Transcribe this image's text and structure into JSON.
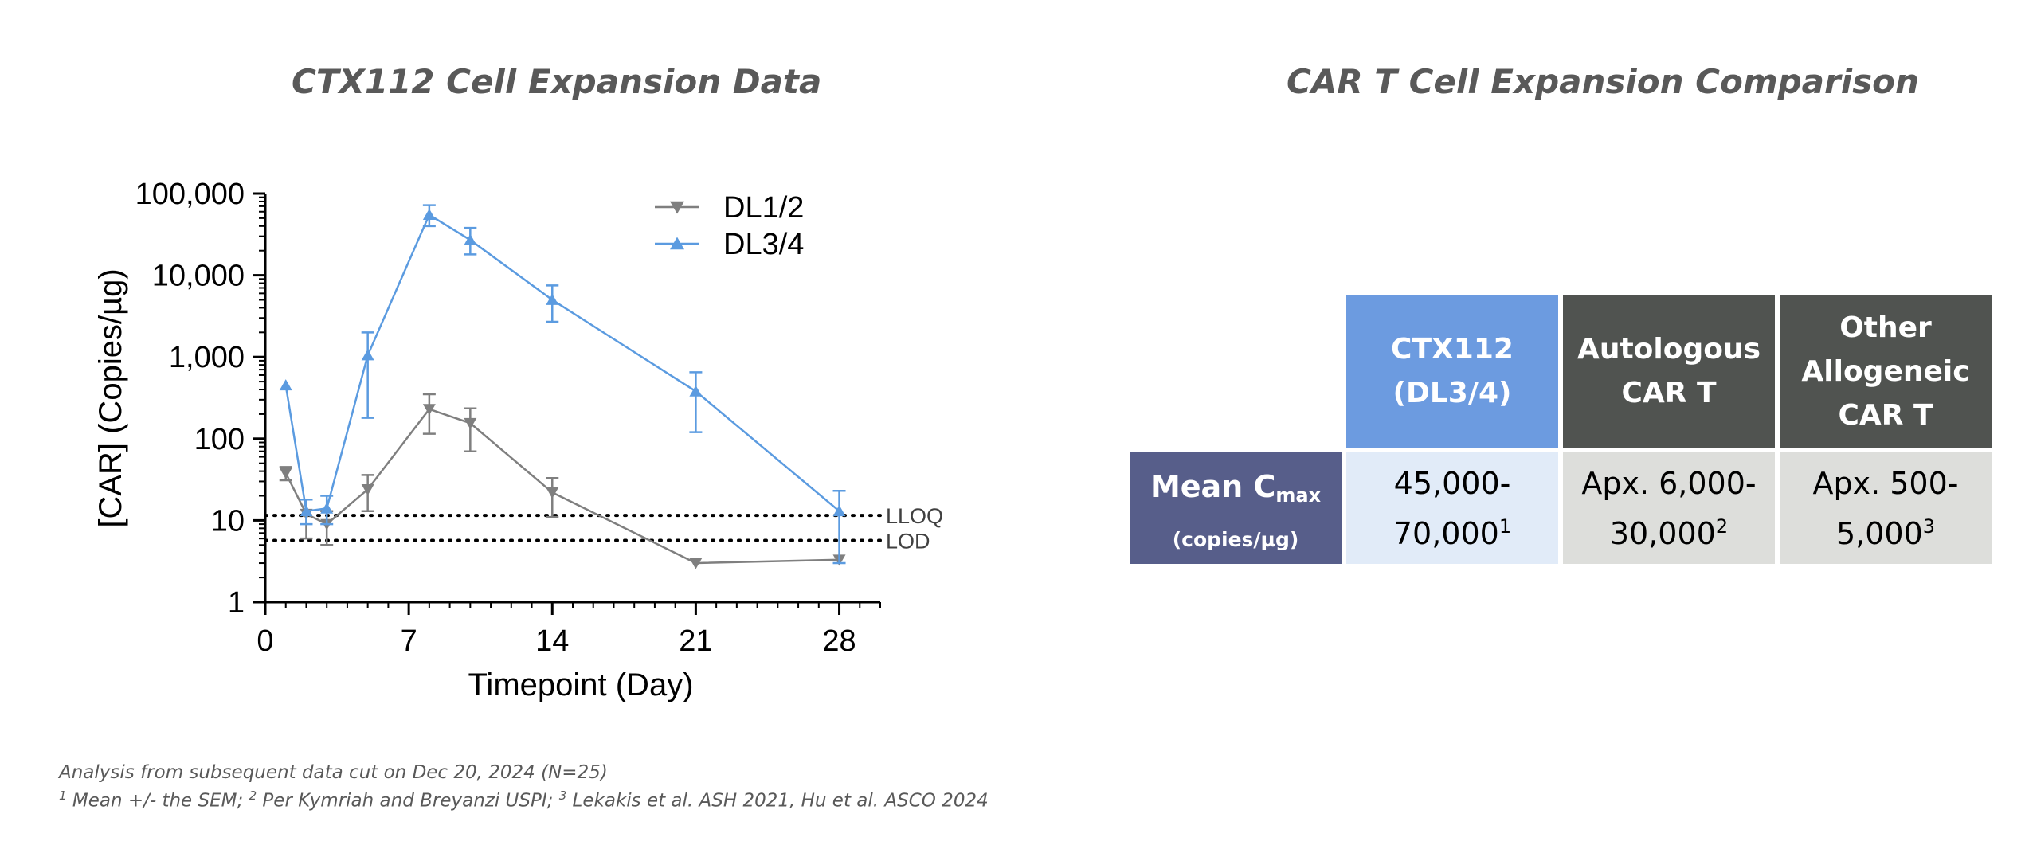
{
  "left_title": "CTX112 Cell Expansion Data",
  "right_title": "CAR T Cell Expansion Comparison",
  "chart_data": {
    "type": "line",
    "title": "",
    "xlabel": "Timepoint (Day)",
    "ylabel": "[CAR] (Copies/µg)",
    "yscale": "log",
    "xlim": [
      0,
      30
    ],
    "ylim": [
      1,
      100000
    ],
    "x_ticks": [
      0,
      7,
      14,
      21,
      28
    ],
    "y_ticks": [
      1,
      10,
      100,
      1000,
      10000,
      100000
    ],
    "y_tick_labels": [
      "1",
      "10",
      "100",
      "1,000",
      "10,000",
      "100,000"
    ],
    "legend_position": "top-right",
    "series": [
      {
        "name": "DL1/2",
        "color": "#7F7F7F",
        "marker": "triangle-down",
        "x": [
          1,
          2,
          3,
          5,
          8,
          10,
          14,
          21,
          28
        ],
        "y": [
          38,
          12,
          9,
          24,
          230,
          155,
          22,
          3,
          3.3
        ],
        "err_low": [
          31,
          6,
          5,
          13,
          115,
          70,
          11,
          null,
          null
        ],
        "err_high": [
          45,
          18,
          13,
          36,
          350,
          235,
          33,
          null,
          null
        ]
      },
      {
        "name": "DL3/4",
        "color": "#5B9BE0",
        "marker": "triangle-up",
        "x": [
          1,
          2,
          3,
          5,
          8,
          10,
          14,
          21,
          28
        ],
        "y": [
          450,
          13,
          14,
          1050,
          55000,
          27000,
          5000,
          380,
          13
        ],
        "err_low": [
          null,
          9,
          9,
          180,
          40000,
          18000,
          2700,
          120,
          3
        ],
        "err_high": [
          null,
          18,
          20,
          2000,
          72000,
          38000,
          7500,
          650,
          23
        ]
      }
    ],
    "reference_lines": [
      {
        "label": "LLOQ",
        "y": 11.5
      },
      {
        "label": "LOD",
        "y": 5.7
      }
    ]
  },
  "table": {
    "headers": [
      {
        "lines": [
          "CTX112",
          "(DL3/4)"
        ]
      },
      {
        "lines": [
          "Autologous",
          "CAR T"
        ]
      },
      {
        "lines": [
          "Other",
          "Allogeneic",
          "CAR T"
        ]
      }
    ],
    "row_label_main": "Mean C",
    "row_label_sub": "max",
    "row_label_unit": "(copies/µg)",
    "cells": [
      {
        "line1": "45,000-",
        "line2": "70,000",
        "ref": "1"
      },
      {
        "line1": "Apx. 6,000-",
        "line2": "30,000",
        "ref": "2"
      },
      {
        "line1": "Apx. 500-",
        "line2": "5,000",
        "ref": "3"
      }
    ]
  },
  "footnotes": {
    "line1": "Analysis from subsequent data cut on Dec 20, 2024 (N=25)",
    "line2_parts": [
      {
        "sup": "1",
        "text": " Mean +/- the SEM; "
      },
      {
        "sup": "2",
        "text": " Per Kymriah and Breyanzi USPI; "
      },
      {
        "sup": "3",
        "text": " Lekakis et al. ASH 2021, Hu et al. ASCO 2024"
      }
    ]
  }
}
